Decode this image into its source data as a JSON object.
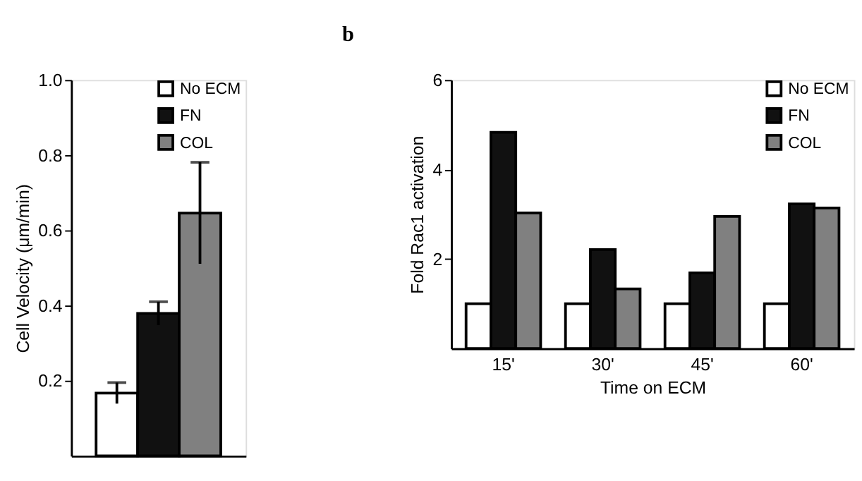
{
  "chart_data": [
    {
      "type": "bar",
      "ylabel": "Cell Velocity  (μm/min)",
      "categories": [
        null
      ],
      "ylim": [
        0,
        1.0
      ],
      "yticks": [
        0.2,
        0.4,
        0.6,
        0.8,
        {
          "value": 1.0,
          "label": "1.0"
        }
      ],
      "grid": false,
      "legend": "top right",
      "series": [
        {
          "name": "No  ECM",
          "color": "#ffffff",
          "values": [
            0.167
          ],
          "errors": [
            0.028
          ]
        },
        {
          "name": "FN",
          "color": "#111111",
          "values": [
            0.379
          ],
          "errors": [
            0.031
          ]
        },
        {
          "name": "COL",
          "color": "#808080",
          "values": [
            0.646
          ],
          "errors": [
            0.135
          ]
        }
      ]
    },
    {
      "type": "bar",
      "title": "b",
      "xlabel": "Time on ECM",
      "ylabel": "Fold Rac1 activation",
      "categories": [
        "15'",
        "30'",
        "45'",
        "60'"
      ],
      "ylim": [
        0,
        6
      ],
      "yticks": [
        2,
        4,
        6
      ],
      "grid": false,
      "legend": "top right",
      "series": [
        {
          "name": "No  ECM",
          "color": "#ffffff",
          "values": [
            1.0,
            1.0,
            1.0,
            1.0
          ]
        },
        {
          "name": "FN",
          "color": "#111111",
          "values": [
            4.83,
            2.21,
            1.69,
            3.23
          ]
        },
        {
          "name": "COL",
          "color": "#808080",
          "values": [
            3.03,
            1.33,
            2.95,
            3.14
          ]
        }
      ]
    }
  ]
}
